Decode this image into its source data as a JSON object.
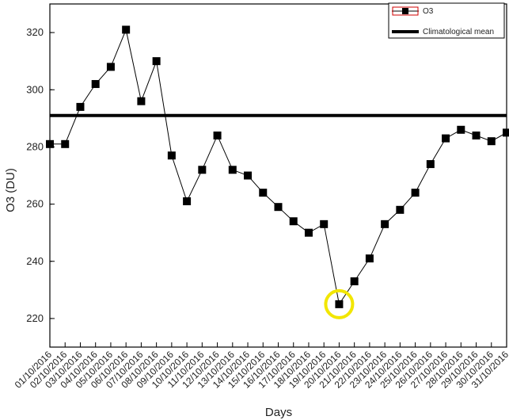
{
  "chart_data": {
    "type": "line",
    "xlabel": "Days",
    "ylabel": "O3 (DU)",
    "ylim": [
      210,
      330
    ],
    "yticks": [
      220,
      240,
      260,
      280,
      300,
      320
    ],
    "categories": [
      "01/10/2016",
      "02/10/2016",
      "03/10/2016",
      "04/10/2016",
      "05/10/2016",
      "06/10/2016",
      "07/10/2016",
      "08/10/2016",
      "09/10/2016",
      "10/10/2016",
      "11/10/2016",
      "12/10/2016",
      "13/10/2016",
      "14/10/2016",
      "15/10/2016",
      "16/10/2016",
      "17/10/2016",
      "18/10/2016",
      "19/10/2016",
      "20/10/2016",
      "21/10/2016",
      "22/10/2016",
      "23/10/2016",
      "24/10/2016",
      "25/10/2016",
      "26/10/2016",
      "27/10/2016",
      "28/10/2016",
      "29/10/2016",
      "30/10/2016",
      "31/10/2016"
    ],
    "series": [
      {
        "name": "O3",
        "color": "#000000",
        "marker": "square",
        "values": [
          281,
          281,
          294,
          302,
          308,
          321,
          296,
          310,
          277,
          261,
          272,
          284,
          272,
          270,
          264,
          259,
          254,
          250,
          253,
          225,
          233,
          241,
          253,
          258,
          264,
          274,
          283,
          286,
          284,
          282,
          285
        ]
      }
    ],
    "climatological_mean": {
      "name": "Climatological mean",
      "value": 291,
      "color": "#000000"
    },
    "highlight": {
      "category": "20/10/2016",
      "value": 225,
      "color": "#f2e600",
      "shape": "circle"
    },
    "legend_position": "top-right",
    "grid": false
  }
}
